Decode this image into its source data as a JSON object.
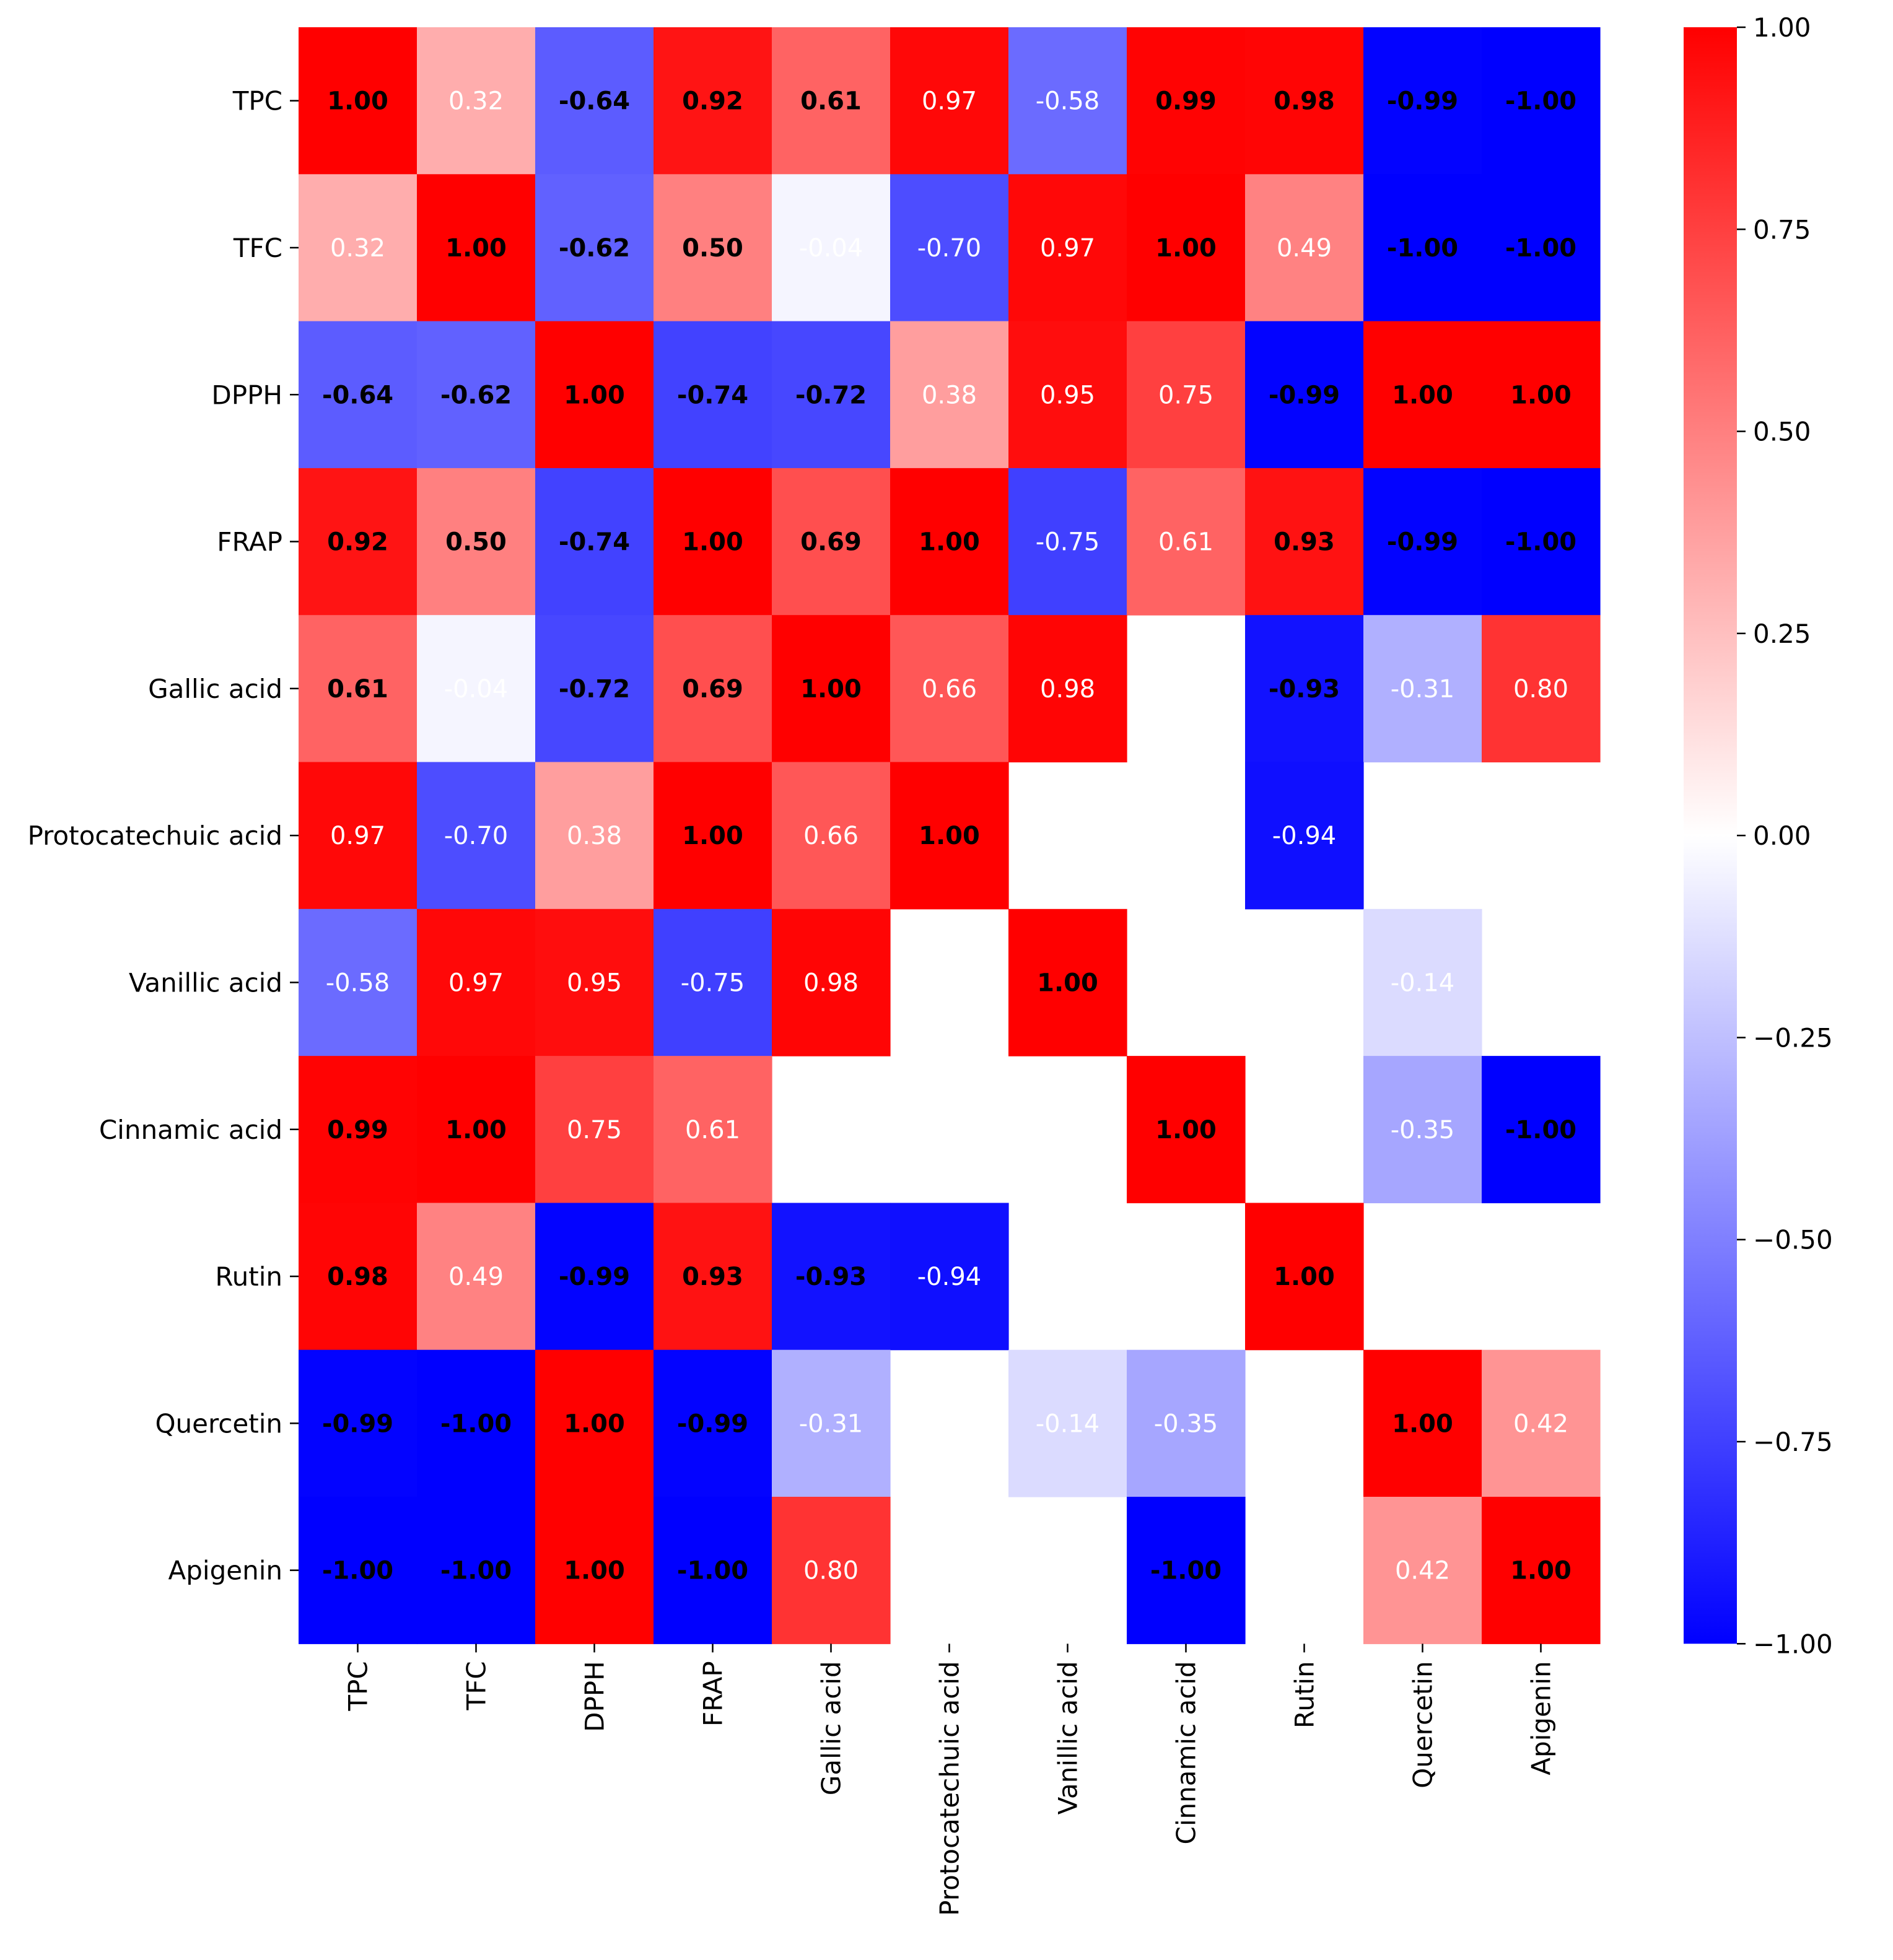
{
  "chart_data": {
    "type": "heatmap",
    "title": "",
    "xlabel": "",
    "ylabel": "",
    "labels": [
      "TPC",
      "TFC",
      "DPPH",
      "FRAP",
      "Gallic acid",
      "Protocatechuic acid",
      "Vanillic acid",
      "Cinnamic acid",
      "Rutin",
      "Quercetin",
      "Apigenin"
    ],
    "matrix": [
      [
        1.0,
        0.32,
        -0.64,
        0.92,
        0.61,
        0.97,
        -0.58,
        0.99,
        0.98,
        -0.99,
        -1.0
      ],
      [
        0.32,
        1.0,
        -0.62,
        0.5,
        -0.04,
        -0.7,
        0.97,
        1.0,
        0.49,
        -1.0,
        -1.0
      ],
      [
        -0.64,
        -0.62,
        1.0,
        -0.74,
        -0.72,
        0.38,
        0.95,
        0.75,
        -0.99,
        1.0,
        1.0
      ],
      [
        0.92,
        0.5,
        -0.74,
        1.0,
        0.69,
        1.0,
        -0.75,
        0.61,
        0.93,
        -0.99,
        -1.0
      ],
      [
        0.61,
        -0.04,
        -0.72,
        0.69,
        1.0,
        0.66,
        0.98,
        null,
        -0.93,
        -0.31,
        0.8
      ],
      [
        0.97,
        -0.7,
        0.38,
        1.0,
        0.66,
        1.0,
        null,
        null,
        -0.94,
        null,
        null
      ],
      [
        -0.58,
        0.97,
        0.95,
        -0.75,
        0.98,
        null,
        1.0,
        null,
        null,
        -0.14,
        null
      ],
      [
        0.99,
        1.0,
        0.75,
        0.61,
        null,
        null,
        null,
        1.0,
        null,
        -0.35,
        -1.0
      ],
      [
        0.98,
        0.49,
        -0.99,
        0.93,
        -0.93,
        -0.94,
        null,
        null,
        1.0,
        null,
        null
      ],
      [
        -0.99,
        -1.0,
        1.0,
        -0.99,
        -0.31,
        null,
        -0.14,
        -0.35,
        null,
        1.0,
        0.42
      ],
      [
        -1.0,
        -1.0,
        1.0,
        -1.0,
        0.8,
        null,
        null,
        -1.0,
        null,
        0.42,
        1.0
      ]
    ],
    "bold_cells": [
      [
        1,
        0,
        1,
        1,
        1,
        0,
        0,
        1,
        1,
        1,
        1
      ],
      [
        0,
        1,
        1,
        1,
        0,
        0,
        0,
        1,
        0,
        1,
        1
      ],
      [
        1,
        1,
        1,
        1,
        1,
        0,
        0,
        0,
        1,
        1,
        1
      ],
      [
        1,
        1,
        1,
        1,
        1,
        1,
        0,
        0,
        1,
        1,
        1
      ],
      [
        1,
        0,
        1,
        1,
        1,
        0,
        0,
        0,
        1,
        0,
        0
      ],
      [
        0,
        0,
        0,
        1,
        0,
        1,
        0,
        0,
        0,
        0,
        0
      ],
      [
        0,
        0,
        0,
        0,
        0,
        0,
        1,
        0,
        0,
        0,
        0
      ],
      [
        1,
        1,
        0,
        0,
        0,
        0,
        0,
        1,
        0,
        0,
        1
      ],
      [
        1,
        0,
        1,
        1,
        1,
        0,
        0,
        0,
        1,
        0,
        0
      ],
      [
        1,
        1,
        1,
        1,
        0,
        0,
        0,
        0,
        0,
        1,
        0
      ],
      [
        1,
        1,
        1,
        1,
        0,
        0,
        0,
        1,
        0,
        0,
        1
      ]
    ],
    "value_format": "0.00",
    "color_range": [
      -1.0,
      1.0
    ],
    "colormap": "bwr",
    "colors": {
      "low": "#0000ff",
      "mid": "#ffffff",
      "high": "#ff0000"
    },
    "colorbar": {
      "ticks": [
        1.0,
        0.75,
        0.5,
        0.25,
        0.0,
        -0.25,
        -0.5,
        -0.75,
        -1.0
      ],
      "tick_labels": [
        "1.00",
        "0.75",
        "0.50",
        "0.25",
        "0.00",
        "−0.25",
        "−0.50",
        "−0.75",
        "−1.00"
      ]
    }
  }
}
